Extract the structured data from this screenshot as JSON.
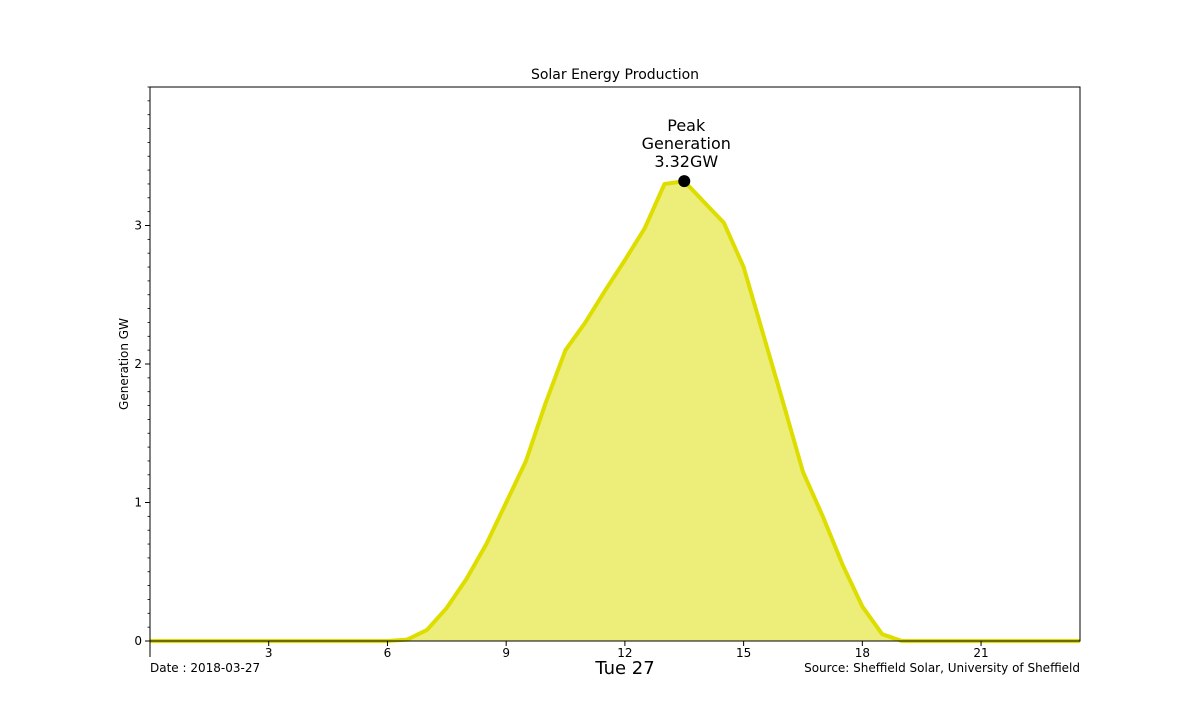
{
  "chart_data": {
    "type": "area",
    "title": "Solar Energy Production",
    "xlabel": "",
    "ylabel": "Generation GW",
    "xlim": [
      0,
      23.5
    ],
    "ylim": [
      0,
      4.0
    ],
    "x_ticks": [
      3,
      6,
      9,
      12,
      15,
      18,
      21
    ],
    "y_ticks": [
      0,
      1,
      2,
      3
    ],
    "day_label": "Tue 27",
    "date_text": "Date : 2018-03-27",
    "source_text": "Source: Sheffield Solar, University of Sheffield",
    "peak": {
      "x": 13.5,
      "y": 3.32,
      "label_lines": [
        "Peak",
        "Generation",
        "3.32GW"
      ]
    },
    "fill_color": "#eded7a",
    "line_color": "#dddd00",
    "series": [
      {
        "x": [
          0,
          0.5,
          1,
          1.5,
          2,
          2.5,
          3,
          3.5,
          4,
          4.5,
          5,
          5.5,
          6,
          6.5,
          7,
          7.5,
          8,
          8.5,
          9,
          9.5,
          10,
          10.5,
          11,
          11.5,
          12,
          12.5,
          13,
          13.5,
          14,
          14.5,
          15,
          15.5,
          16,
          16.5,
          17,
          17.5,
          18,
          18.5,
          19,
          19.5,
          20,
          20.5,
          21,
          21.5,
          22,
          22.5,
          23,
          23.5
        ],
        "values": [
          0,
          0,
          0,
          0,
          0,
          0,
          0,
          0,
          0,
          0,
          0,
          0,
          0,
          0.01,
          0.08,
          0.24,
          0.45,
          0.7,
          1.0,
          1.3,
          1.72,
          2.1,
          2.3,
          2.53,
          2.75,
          2.98,
          3.3,
          3.32,
          3.17,
          3.02,
          2.7,
          2.21,
          1.72,
          1.22,
          0.9,
          0.55,
          0.25,
          0.05,
          0,
          0,
          0,
          0,
          0,
          0,
          0,
          0,
          0,
          0
        ]
      }
    ]
  }
}
